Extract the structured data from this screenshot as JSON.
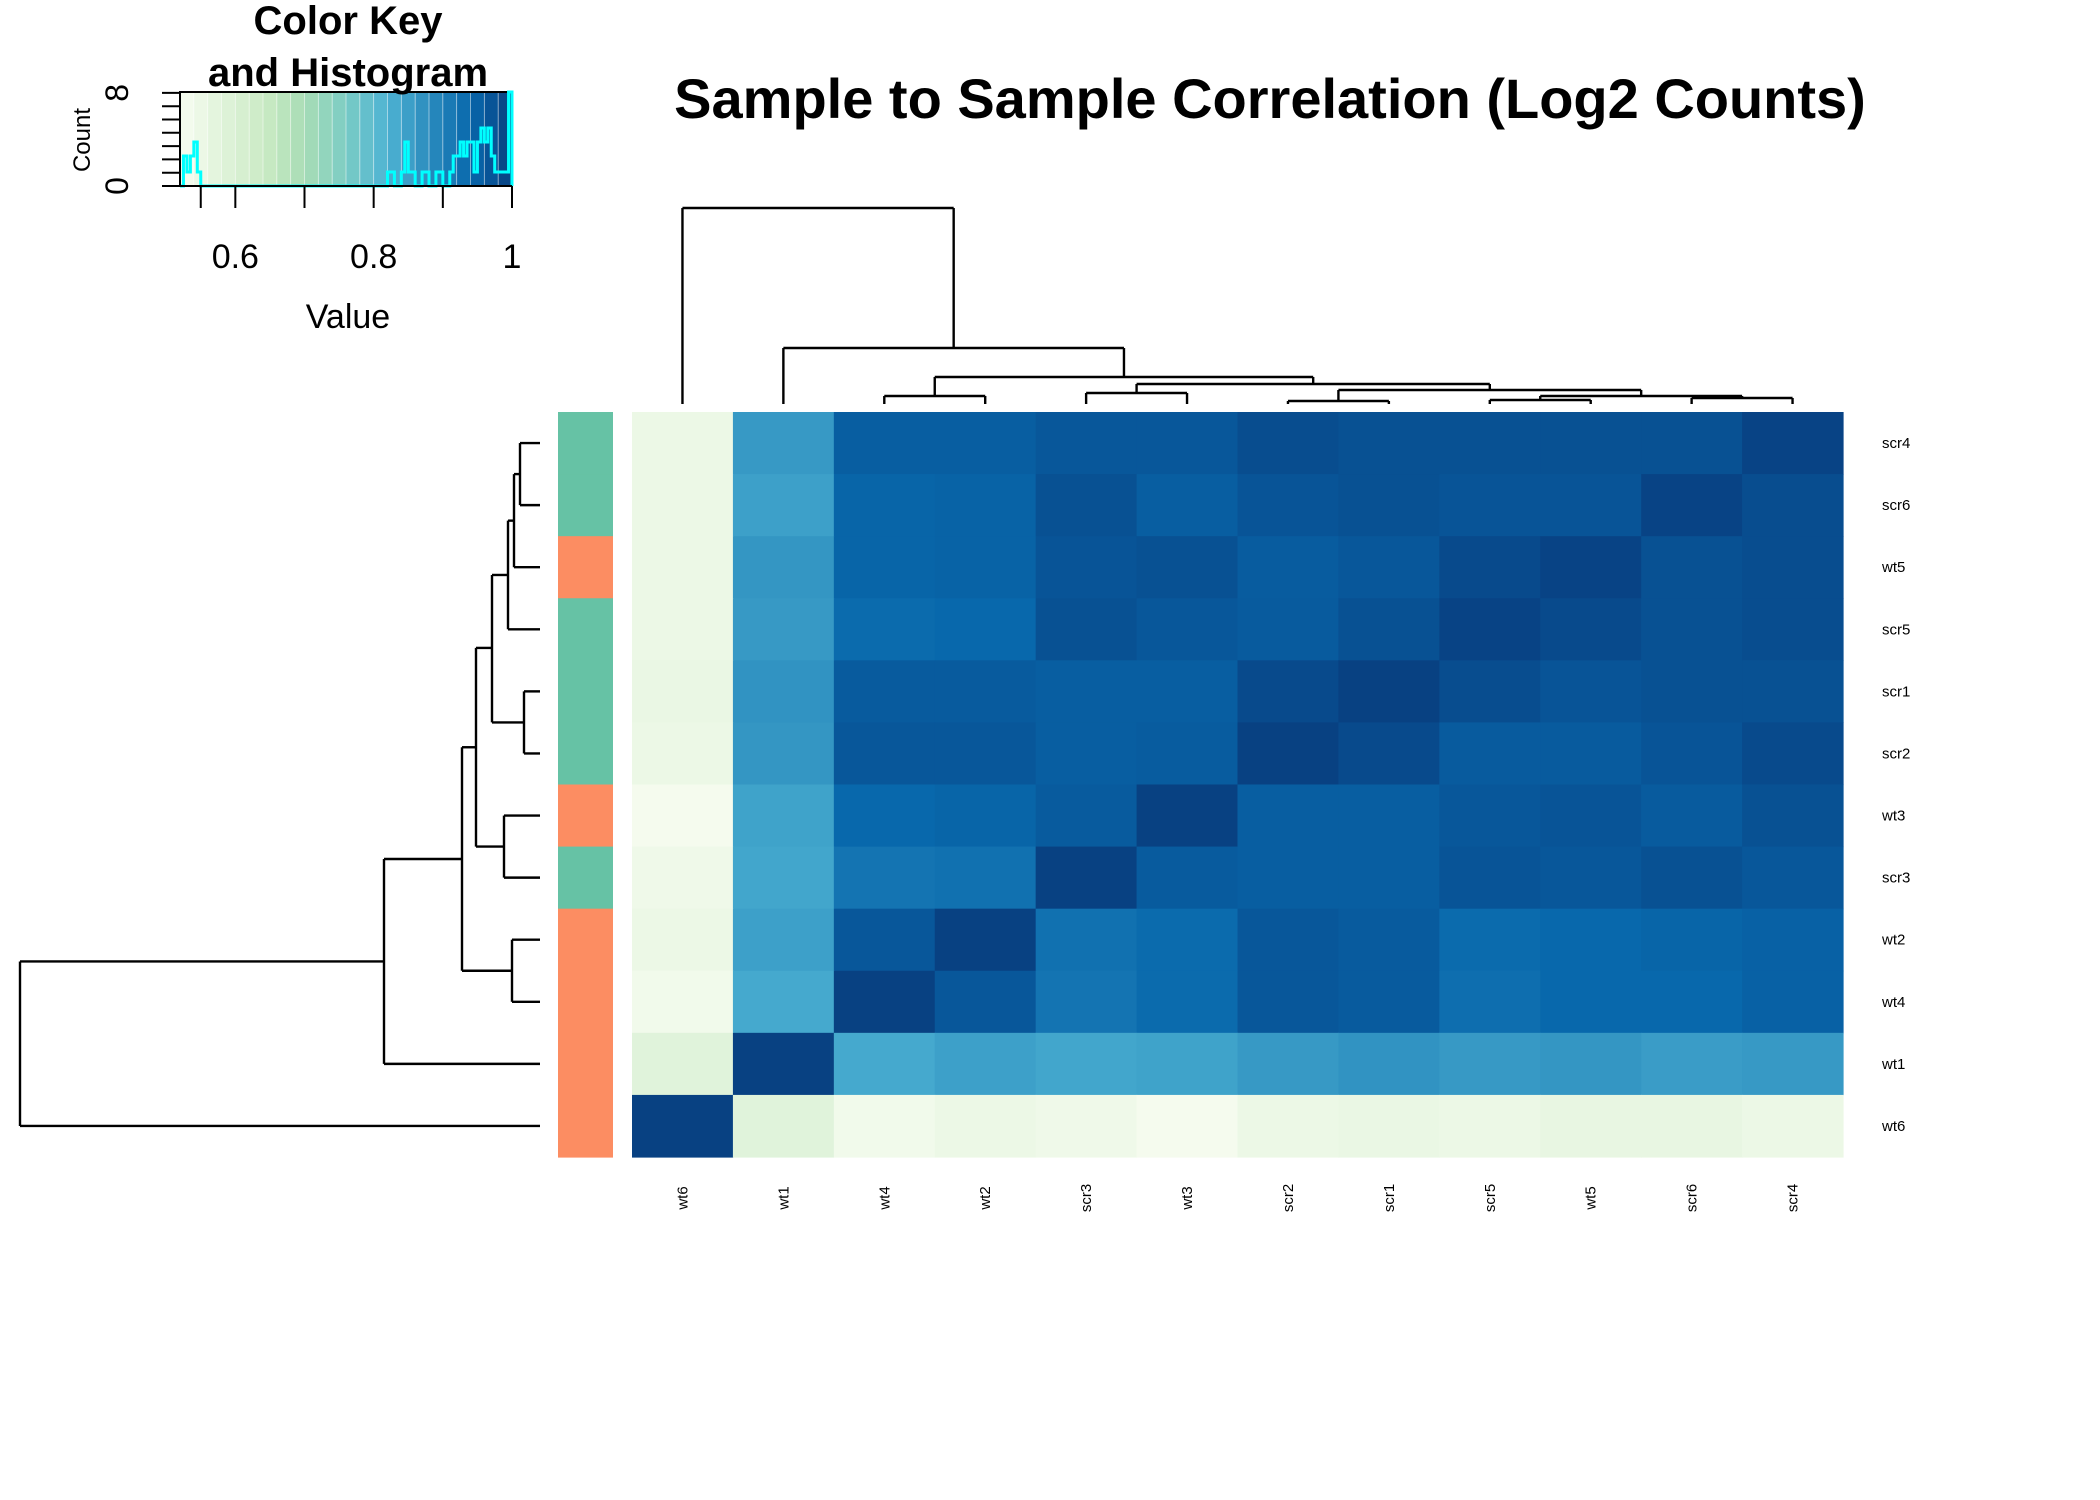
{
  "chart_data": {
    "type": "heatmap",
    "title": "Sample to Sample Correlation (Log2 Counts)",
    "columns": [
      "wt6",
      "wt1",
      "wt4",
      "wt2",
      "scr3",
      "wt3",
      "scr2",
      "scr1",
      "scr5",
      "wt5",
      "scr6",
      "scr4"
    ],
    "rows": [
      "scr4",
      "scr6",
      "wt5",
      "scr5",
      "scr1",
      "scr2",
      "wt3",
      "scr3",
      "wt2",
      "wt4",
      "wt1",
      "wt6"
    ],
    "row_groups": [
      "scr",
      "scr",
      "wt",
      "scr",
      "scr",
      "scr",
      "wt",
      "scr",
      "wt",
      "wt",
      "wt",
      "wt"
    ],
    "group_colors": {
      "scr": "#66c2a5",
      "wt": "#fc8d62"
    },
    "values": [
      [
        0.55,
        0.86,
        0.955,
        0.955,
        0.965,
        0.965,
        0.98,
        0.975,
        0.975,
        0.975,
        0.975,
        0.995
      ],
      [
        0.55,
        0.85,
        0.945,
        0.948,
        0.975,
        0.955,
        0.97,
        0.975,
        0.97,
        0.97,
        0.995,
        0.98
      ],
      [
        0.55,
        0.865,
        0.945,
        0.948,
        0.97,
        0.975,
        0.958,
        0.965,
        0.985,
        0.995,
        0.975,
        0.98
      ],
      [
        0.55,
        0.86,
        0.935,
        0.94,
        0.975,
        0.965,
        0.96,
        0.975,
        0.995,
        0.985,
        0.975,
        0.98
      ],
      [
        0.555,
        0.87,
        0.96,
        0.96,
        0.955,
        0.955,
        0.985,
        0.998,
        0.98,
        0.97,
        0.975,
        0.975
      ],
      [
        0.55,
        0.865,
        0.965,
        0.965,
        0.955,
        0.958,
        0.998,
        0.985,
        0.96,
        0.96,
        0.97,
        0.985
      ],
      [
        0.525,
        0.845,
        0.94,
        0.945,
        0.96,
        0.998,
        0.955,
        0.955,
        0.965,
        0.97,
        0.96,
        0.975
      ],
      [
        0.54,
        0.84,
        0.92,
        0.925,
        0.998,
        0.96,
        0.955,
        0.955,
        0.97,
        0.965,
        0.975,
        0.965
      ],
      [
        0.55,
        0.85,
        0.965,
        0.998,
        0.925,
        0.935,
        0.965,
        0.96,
        0.935,
        0.94,
        0.945,
        0.95
      ],
      [
        0.535,
        0.835,
        0.998,
        0.965,
        0.92,
        0.935,
        0.965,
        0.96,
        0.93,
        0.94,
        0.94,
        0.95
      ],
      [
        0.58,
        0.998,
        0.835,
        0.85,
        0.84,
        0.845,
        0.86,
        0.87,
        0.86,
        0.865,
        0.855,
        0.86
      ],
      [
        0.998,
        0.58,
        0.535,
        0.55,
        0.54,
        0.525,
        0.55,
        0.555,
        0.55,
        0.56,
        0.56,
        0.55
      ]
    ],
    "color_key": {
      "title_line1": "Color Key",
      "title_line2": "and Histogram",
      "xlabel": "Value",
      "ylabel": "Count",
      "xticks": [
        "0.6",
        "0.8",
        "1"
      ],
      "xtick_values": [
        0.6,
        0.8,
        1.0
      ],
      "yticks": [
        "0",
        "8"
      ],
      "ytick_values": [
        0,
        8
      ],
      "range": [
        0.52,
        1.0
      ],
      "colors": [
        "#f7fcf0",
        "#e0f3db",
        "#ccebc5",
        "#a8ddb5",
        "#7bccc4",
        "#4eb3d3",
        "#2b8cbe",
        "#0868ac",
        "#084081"
      ],
      "histogram_color": "#00ffff"
    }
  }
}
